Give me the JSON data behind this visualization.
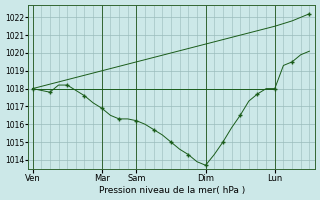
{
  "background_color": "#cce8e8",
  "grid_color": "#99bbbb",
  "line_color": "#1a5c1a",
  "marker_color": "#1a5c1a",
  "xlabel": "Pression niveau de la mer( hPa )",
  "ylim": [
    1013.5,
    1022.7
  ],
  "yticks": [
    1014,
    1015,
    1016,
    1017,
    1018,
    1019,
    1020,
    1021,
    1022
  ],
  "xtick_labels": [
    "Ven",
    "Mar",
    "Sam",
    "Dim",
    "Lun"
  ],
  "xtick_positions": [
    0,
    48,
    72,
    120,
    168
  ],
  "vline_positions": [
    0,
    48,
    72,
    120,
    168
  ],
  "xlim": [
    -3,
    196
  ],
  "flat_line": {
    "x": [
      0,
      48,
      72,
      96,
      120,
      168
    ],
    "y": [
      1018.0,
      1018.0,
      1018.0,
      1018.0,
      1018.0,
      1018.0
    ]
  },
  "rising_line": {
    "x": [
      0,
      72,
      120,
      144,
      168,
      180,
      192
    ],
    "y": [
      1018.0,
      1019.5,
      1020.5,
      1021.0,
      1021.5,
      1021.8,
      1022.2
    ]
  },
  "dip_line": {
    "x": [
      0,
      6,
      12,
      18,
      24,
      30,
      36,
      42,
      48,
      54,
      60,
      66,
      72,
      78,
      84,
      90,
      96,
      102,
      108,
      114,
      120,
      126,
      132,
      138,
      144,
      150,
      156,
      162,
      168,
      174,
      180,
      186,
      192
    ],
    "y": [
      1018.0,
      1017.9,
      1017.8,
      1018.2,
      1018.2,
      1017.9,
      1017.6,
      1017.2,
      1016.9,
      1016.5,
      1016.3,
      1016.3,
      1016.2,
      1016.0,
      1015.7,
      1015.4,
      1015.0,
      1014.6,
      1014.3,
      1013.9,
      1013.7,
      1014.3,
      1015.0,
      1015.8,
      1016.5,
      1017.3,
      1017.7,
      1018.0,
      1018.0,
      1019.3,
      1019.5,
      1019.9,
      1020.1
    ]
  },
  "markers": {
    "x": [
      0,
      12,
      24,
      36,
      48,
      60,
      72,
      84,
      96,
      108,
      120,
      132,
      144,
      156,
      168,
      180,
      192
    ],
    "y": [
      1018.0,
      1017.8,
      1018.2,
      1017.6,
      1016.9,
      1016.3,
      1016.2,
      1015.7,
      1015.0,
      1014.3,
      1013.7,
      1015.0,
      1016.5,
      1017.7,
      1018.0,
      1019.5,
      1022.2
    ]
  }
}
